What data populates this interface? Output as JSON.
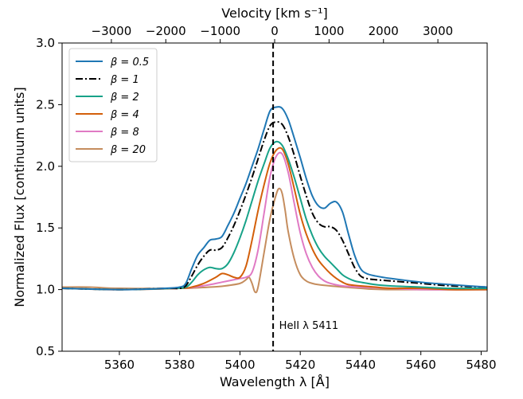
{
  "chart_data": {
    "type": "line",
    "xlabel": "Wavelength λ [Å]",
    "ylabel": "Normalized Flux [continuum units]",
    "top_xlabel": "Velocity [km s⁻¹]",
    "xlim": [
      5341,
      5482
    ],
    "ylim": [
      0.5,
      3.0
    ],
    "x_ticks": [
      5360,
      5380,
      5400,
      5420,
      5440,
      5460,
      5480
    ],
    "y_ticks": [
      0.5,
      1.0,
      1.5,
      2.0,
      2.5,
      3.0
    ],
    "top_ticks": [
      -3000,
      -2000,
      -1000,
      0,
      1000,
      2000,
      3000
    ],
    "top_tick_labels": [
      "−3000",
      "−2000",
      "−1000",
      "0",
      "1000",
      "2000",
      "3000"
    ],
    "rest_wavelength": 5411.5,
    "grid": false,
    "legend_position": "top-left",
    "vline": {
      "x": 5411,
      "style": "dashed",
      "color": "#000000"
    },
    "annotation": {
      "text": "HeII λ 5411",
      "x": 5413,
      "y": 0.68
    },
    "series": [
      {
        "name": "β = 0.5",
        "color": "#1f77b4",
        "dash": "",
        "x": [
          5341,
          5360,
          5375,
          5380,
          5382,
          5384,
          5386,
          5388,
          5390,
          5392,
          5394,
          5396,
          5398,
          5400,
          5402,
          5404,
          5406,
          5408,
          5410,
          5412,
          5414,
          5416,
          5418,
          5420,
          5422,
          5424,
          5426,
          5428,
          5430,
          5432,
          5434,
          5436,
          5438,
          5440,
          5442,
          5445,
          5450,
          5460,
          5470,
          5482
        ],
        "y": [
          1.01,
          1.0,
          1.01,
          1.02,
          1.05,
          1.17,
          1.28,
          1.34,
          1.4,
          1.41,
          1.43,
          1.52,
          1.62,
          1.74,
          1.86,
          2.0,
          2.14,
          2.3,
          2.45,
          2.48,
          2.47,
          2.38,
          2.23,
          2.07,
          1.9,
          1.76,
          1.68,
          1.66,
          1.7,
          1.71,
          1.63,
          1.45,
          1.28,
          1.17,
          1.13,
          1.11,
          1.09,
          1.06,
          1.04,
          1.02
        ]
      },
      {
        "name": "β = 1",
        "color": "#000000",
        "dash": "9,3,2,3",
        "x": [
          5341,
          5360,
          5375,
          5380,
          5382,
          5384,
          5386,
          5388,
          5390,
          5392,
          5394,
          5396,
          5398,
          5400,
          5402,
          5404,
          5406,
          5408,
          5410,
          5412,
          5414,
          5416,
          5418,
          5420,
          5422,
          5424,
          5426,
          5428,
          5430,
          5432,
          5434,
          5436,
          5438,
          5440,
          5442,
          5445,
          5450,
          5460,
          5470,
          5482
        ],
        "y": [
          1.01,
          1.0,
          1.01,
          1.01,
          1.03,
          1.11,
          1.2,
          1.27,
          1.32,
          1.32,
          1.34,
          1.42,
          1.52,
          1.64,
          1.77,
          1.91,
          2.06,
          2.21,
          2.33,
          2.36,
          2.34,
          2.24,
          2.09,
          1.92,
          1.76,
          1.62,
          1.54,
          1.51,
          1.51,
          1.48,
          1.4,
          1.29,
          1.18,
          1.11,
          1.09,
          1.08,
          1.07,
          1.05,
          1.03,
          1.02
        ]
      },
      {
        "name": "β = 2",
        "color": "#17a288",
        "dash": "",
        "x": [
          5341,
          5360,
          5378,
          5382,
          5384,
          5386,
          5388,
          5390,
          5392,
          5394,
          5396,
          5398,
          5400,
          5402,
          5404,
          5406,
          5408,
          5410,
          5412,
          5414,
          5416,
          5418,
          5420,
          5422,
          5424,
          5426,
          5428,
          5430,
          5432,
          5434,
          5436,
          5438,
          5440,
          5445,
          5450,
          5460,
          5470,
          5482
        ],
        "y": [
          1.01,
          1.0,
          1.01,
          1.02,
          1.06,
          1.12,
          1.16,
          1.18,
          1.17,
          1.17,
          1.21,
          1.3,
          1.42,
          1.56,
          1.72,
          1.88,
          2.02,
          2.15,
          2.2,
          2.17,
          2.06,
          1.91,
          1.74,
          1.57,
          1.44,
          1.34,
          1.27,
          1.22,
          1.17,
          1.12,
          1.09,
          1.07,
          1.06,
          1.04,
          1.03,
          1.02,
          1.01,
          1.01
        ]
      },
      {
        "name": "β = 4",
        "color": "#d35f0a",
        "dash": "",
        "x": [
          5341,
          5360,
          5380,
          5384,
          5388,
          5392,
          5394,
          5396,
          5398,
          5400,
          5402,
          5404,
          5406,
          5408,
          5410,
          5412,
          5414,
          5416,
          5418,
          5420,
          5422,
          5424,
          5426,
          5428,
          5430,
          5432,
          5434,
          5436,
          5440,
          5445,
          5450,
          5460,
          5470,
          5482
        ],
        "y": [
          1.01,
          1.0,
          1.01,
          1.02,
          1.05,
          1.1,
          1.13,
          1.12,
          1.1,
          1.1,
          1.19,
          1.4,
          1.64,
          1.85,
          2.03,
          2.13,
          2.14,
          2.02,
          1.82,
          1.61,
          1.45,
          1.33,
          1.24,
          1.18,
          1.13,
          1.09,
          1.06,
          1.04,
          1.03,
          1.02,
          1.01,
          1.01,
          1.0,
          1.0
        ]
      },
      {
        "name": "β = 8",
        "color": "#e07ac4",
        "dash": "",
        "x": [
          5341,
          5360,
          5380,
          5385,
          5390,
          5394,
          5398,
          5400,
          5402,
          5404,
          5406,
          5408,
          5410,
          5412,
          5414,
          5416,
          5418,
          5420,
          5422,
          5424,
          5426,
          5428,
          5430,
          5434,
          5440,
          5450,
          5460,
          5482
        ],
        "y": [
          1.01,
          1.0,
          1.01,
          1.02,
          1.04,
          1.06,
          1.08,
          1.09,
          1.1,
          1.14,
          1.32,
          1.62,
          1.92,
          2.08,
          2.1,
          1.95,
          1.7,
          1.46,
          1.29,
          1.18,
          1.11,
          1.07,
          1.05,
          1.03,
          1.02,
          1.01,
          1.0,
          1.0
        ]
      },
      {
        "name": "β = 20",
        "color": "#c58d5e",
        "dash": "",
        "x": [
          5341,
          5350,
          5360,
          5380,
          5390,
          5395,
          5400,
          5402,
          5403,
          5404,
          5405,
          5406,
          5408,
          5410,
          5412,
          5413,
          5414,
          5415,
          5416,
          5418,
          5420,
          5422,
          5424,
          5426,
          5430,
          5440,
          5450,
          5482
        ],
        "y": [
          1.02,
          1.02,
          1.01,
          1.01,
          1.02,
          1.03,
          1.05,
          1.08,
          1.1,
          1.05,
          0.98,
          1.02,
          1.3,
          1.58,
          1.77,
          1.82,
          1.78,
          1.64,
          1.47,
          1.25,
          1.12,
          1.07,
          1.05,
          1.04,
          1.03,
          1.01,
          1.0,
          1.0
        ]
      }
    ]
  }
}
